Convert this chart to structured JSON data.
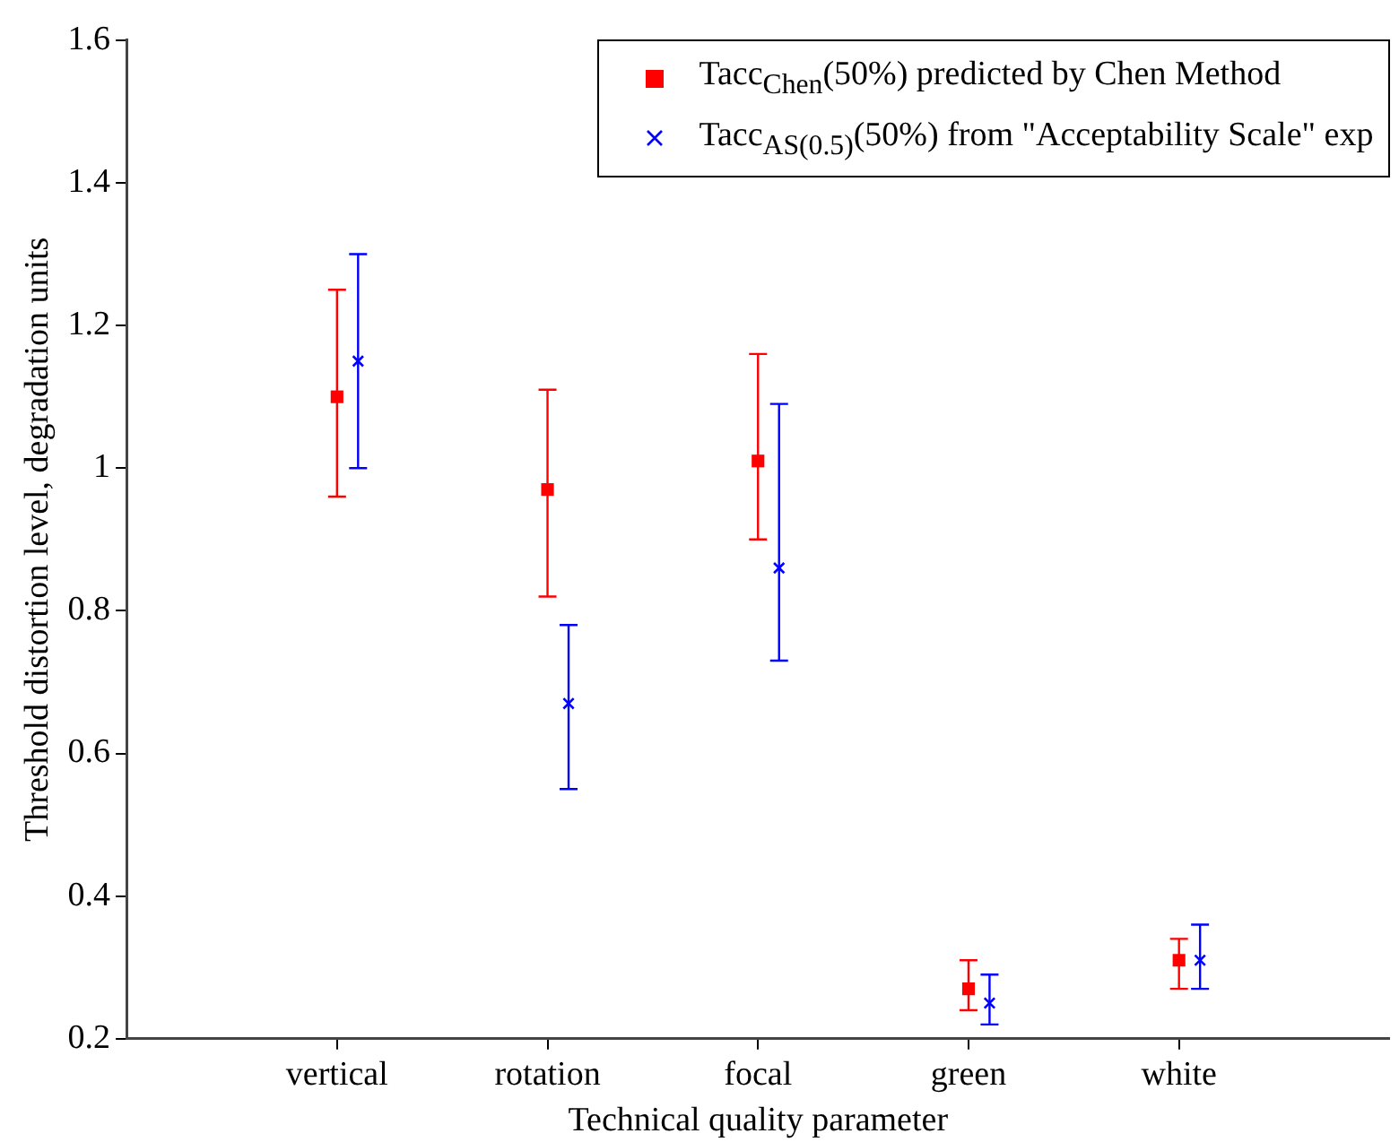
{
  "chart_data": {
    "type": "scatter",
    "xlabel": "Technical quality parameter",
    "ylabel": "Threshold distortion level, degradation units",
    "categories": [
      "vertical",
      "rotation",
      "focal",
      "green",
      "white"
    ],
    "series": [
      {
        "name": "Tacc$_{Chen}$(50%)  predicted by Chen Method",
        "color": "#ff0000",
        "marker": "square",
        "values": [
          1.1,
          0.97,
          1.01,
          0.27,
          0.31
        ],
        "errors": [
          [
            0.96,
            1.25
          ],
          [
            0.82,
            1.11
          ],
          [
            0.9,
            1.16
          ],
          [
            0.24,
            0.31
          ],
          [
            0.27,
            0.34
          ]
        ]
      },
      {
        "name": "Tacc$_{AS(0.5)}$(50%) from \"Acceptability Scale\" exp",
        "color": "#0000ff",
        "marker": "cross",
        "values": [
          1.15,
          0.67,
          0.86,
          0.25,
          0.31
        ],
        "errors": [
          [
            1.0,
            1.3
          ],
          [
            0.55,
            0.78
          ],
          [
            0.73,
            1.09
          ],
          [
            0.22,
            0.29
          ],
          [
            0.27,
            0.36
          ]
        ]
      }
    ],
    "ylim": [
      0.2,
      1.6
    ],
    "yticks": [
      0.2,
      0.4,
      0.6,
      0.8,
      1,
      1.2,
      1.4,
      1.6
    ],
    "grid": false,
    "legend": "top right"
  }
}
